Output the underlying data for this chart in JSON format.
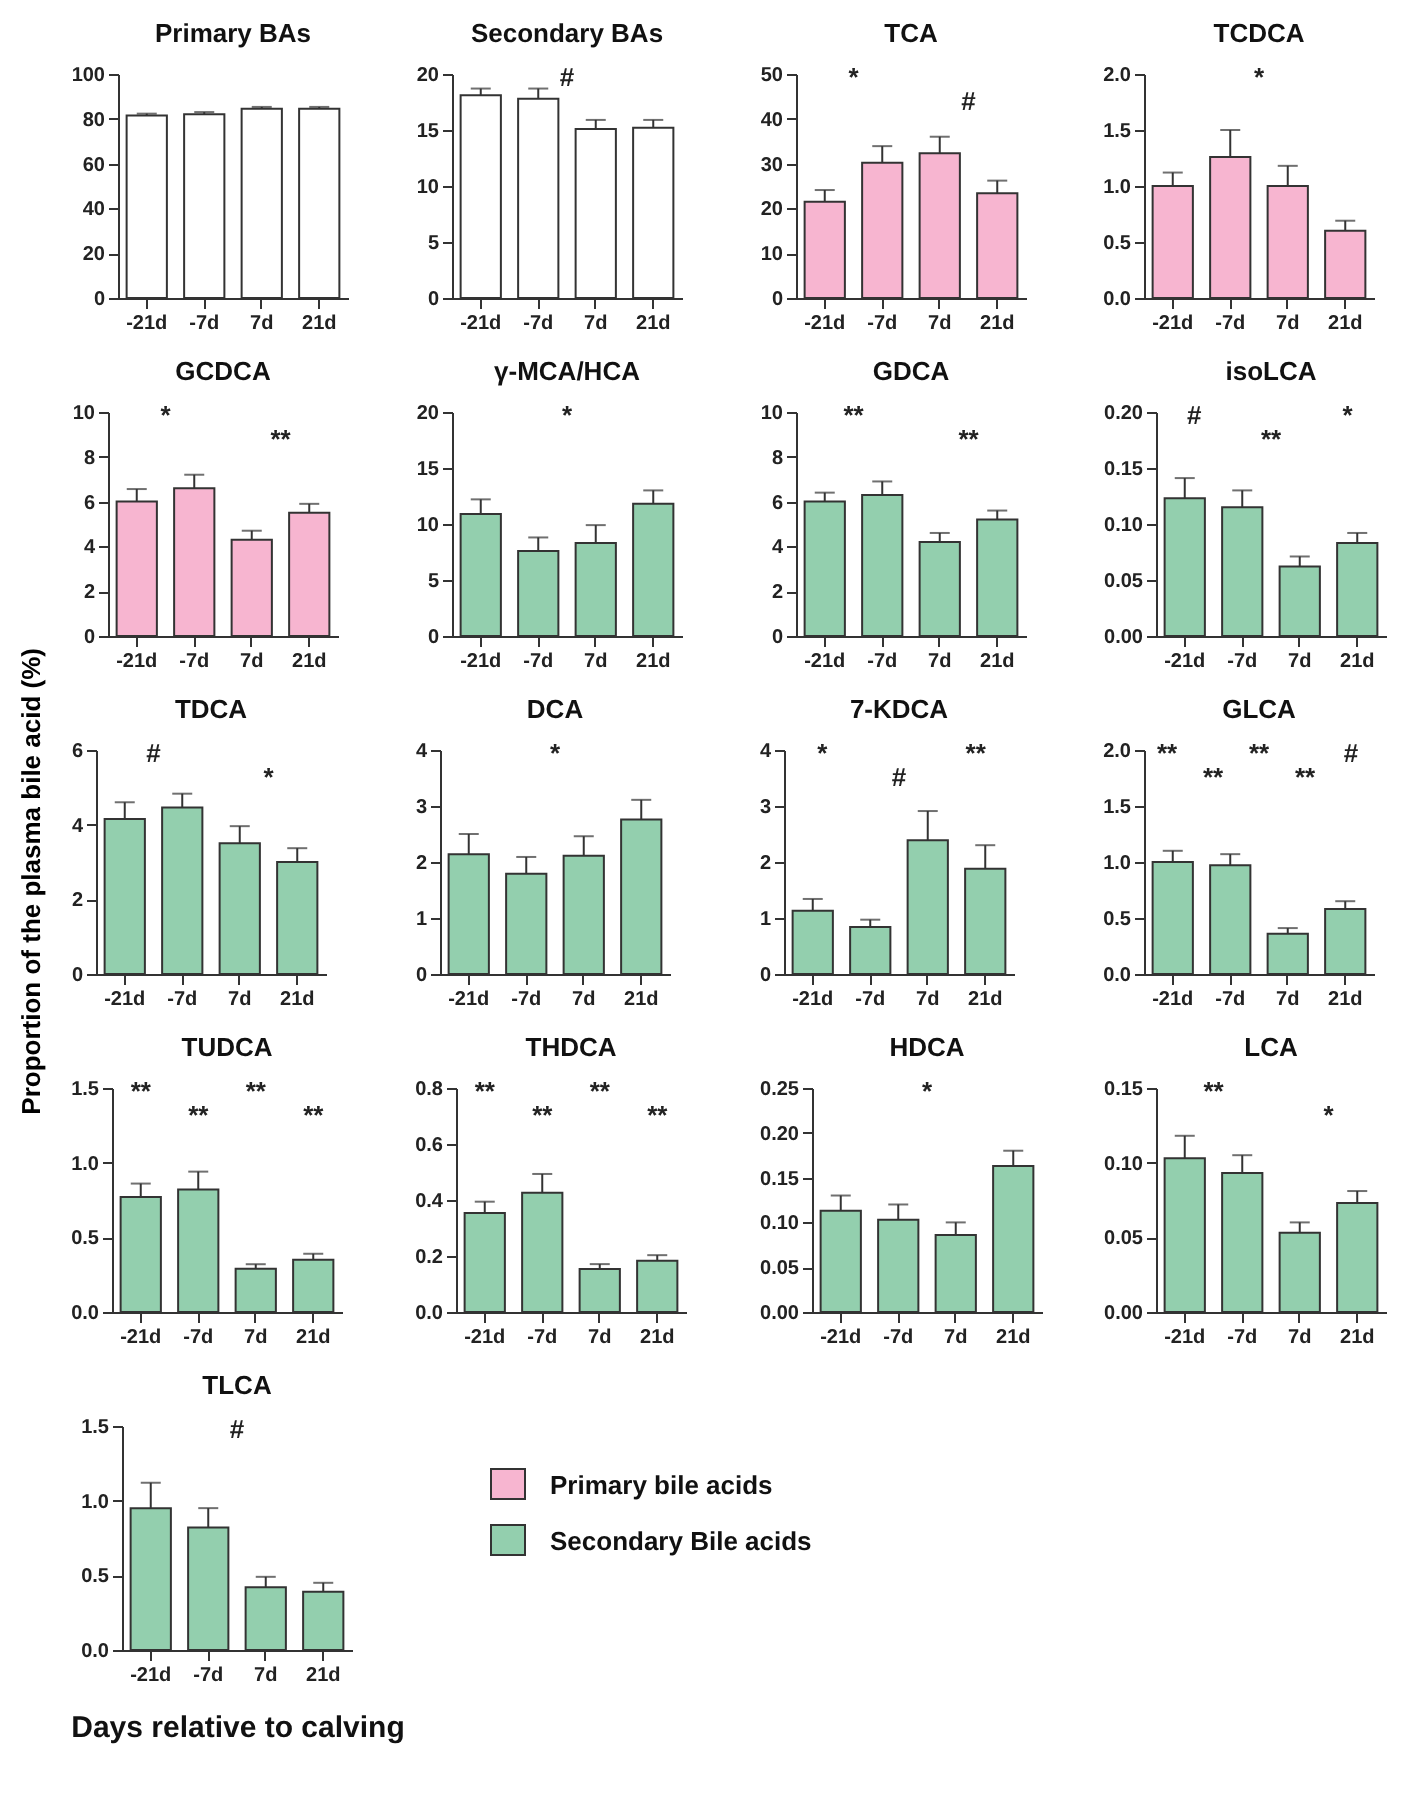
{
  "chart_data": [
    {
      "type": "bar",
      "title": "Primary BAs",
      "categories": [
        "-21d",
        "-7d",
        "7d",
        "21d"
      ],
      "series": [
        {
          "color": "#ffffff",
          "values": [
            81.5,
            82,
            84.5,
            84.5
          ],
          "errors": [
            0.8,
            1,
            0.8,
            0.8
          ]
        }
      ],
      "ylim": [
        0,
        100
      ],
      "yticks": [
        0,
        20,
        40,
        60,
        80,
        100
      ]
    },
    {
      "type": "bar",
      "title": "Secondary BAs",
      "categories": [
        "-21d",
        "-7d",
        "7d",
        "21d"
      ],
      "series": [
        {
          "color": "#ffffff",
          "values": [
            18.1,
            17.8,
            15.1,
            15.2
          ],
          "errors": [
            0.6,
            0.9,
            0.8,
            0.7
          ]
        }
      ],
      "ylim": [
        0,
        20
      ],
      "yticks": [
        0,
        5,
        10,
        15,
        20
      ],
      "annotations": [
        "#"
      ]
    },
    {
      "type": "bar",
      "title": "TCA",
      "categories": [
        "-21d",
        "-7d",
        "7d",
        "21d"
      ],
      "series": [
        {
          "name": "Primary bile acids",
          "color": "#f7b5d0",
          "values": [
            21.5,
            30.2,
            32.3,
            23.4
          ],
          "errors": [
            2.6,
            3.7,
            3.7,
            2.8
          ]
        }
      ],
      "ylim": [
        0,
        50
      ],
      "yticks": [
        0,
        10,
        20,
        30,
        40,
        50
      ],
      "annotations": [
        "*",
        "#"
      ]
    },
    {
      "type": "bar",
      "title": "TCDCA",
      "categories": [
        "-21d",
        "-7d",
        "7d",
        "21d"
      ],
      "series": [
        {
          "color": "#f7b5d0",
          "values": [
            1.0,
            1.26,
            1.0,
            0.6
          ],
          "errors": [
            0.12,
            0.24,
            0.18,
            0.09
          ]
        }
      ],
      "ylim": [
        0,
        2
      ],
      "yticks": [
        {
          "value": 0,
          "label": "0.0"
        },
        0.5,
        {
          "value": 1,
          "label": "1.0"
        },
        1.5,
        {
          "value": 2,
          "label": "2.0"
        }
      ],
      "annotations": [
        "*"
      ]
    },
    {
      "type": "bar",
      "title": "GCDCA",
      "categories": [
        "-21d",
        "-7d",
        "7d",
        "21d"
      ],
      "series": [
        {
          "color": "#f7b5d0",
          "values": [
            6.0,
            6.6,
            4.3,
            5.5
          ],
          "errors": [
            0.56,
            0.6,
            0.4,
            0.4
          ]
        }
      ],
      "ylim": [
        0,
        10
      ],
      "yticks": [
        0,
        2,
        4,
        6,
        8,
        10
      ],
      "annotations": [
        "*",
        "**"
      ]
    },
    {
      "type": "bar",
      "title": "γ-MCA/HCA",
      "categories": [
        "-21d",
        "-7d",
        "7d",
        "21d"
      ],
      "series": [
        {
          "color": "#93cfae",
          "values": [
            10.9,
            7.6,
            8.3,
            11.8
          ],
          "errors": [
            1.3,
            1.2,
            1.6,
            1.2
          ]
        }
      ],
      "ylim": [
        0,
        20
      ],
      "yticks": [
        0,
        5,
        10,
        15,
        20
      ],
      "annotations": [
        "*"
      ]
    },
    {
      "type": "bar",
      "title": "GDCA",
      "categories": [
        "-21d",
        "-7d",
        "7d",
        "21d"
      ],
      "series": [
        {
          "color": "#93cfae",
          "values": [
            6.0,
            6.3,
            4.2,
            5.2
          ],
          "errors": [
            0.4,
            0.6,
            0.4,
            0.4
          ]
        }
      ],
      "ylim": [
        0,
        10
      ],
      "yticks": [
        0,
        2,
        4,
        6,
        8,
        10
      ],
      "annotations": [
        "**",
        "**"
      ]
    },
    {
      "type": "bar",
      "title": "isoLCA",
      "categories": [
        "-21d",
        "-7d",
        "7d",
        "21d"
      ],
      "series": [
        {
          "color": "#93cfae",
          "values": [
            0.123,
            0.115,
            0.062,
            0.083
          ],
          "errors": [
            0.018,
            0.015,
            0.009,
            0.009
          ]
        }
      ],
      "ylim": [
        0,
        0.2
      ],
      "yticks": [
        {
          "value": 0,
          "label": "0.00"
        },
        0.05,
        {
          "value": 0.1,
          "label": "0.10"
        },
        0.15,
        {
          "value": 0.2,
          "label": "0.20"
        }
      ],
      "annotations": [
        "#",
        "**",
        "*"
      ]
    },
    {
      "type": "bar",
      "title": "TDCA",
      "ylabel": "Proportion of  the plasma bile acid (%)",
      "categories": [
        "-21d",
        "-7d",
        "7d",
        "21d"
      ],
      "series": [
        {
          "color": "#93cfae",
          "values": [
            4.15,
            4.46,
            3.5,
            3.0
          ],
          "errors": [
            0.45,
            0.37,
            0.46,
            0.37
          ]
        }
      ],
      "ylim": [
        0,
        6
      ],
      "yticks": [
        0,
        2,
        4,
        6
      ],
      "annotations": [
        "#",
        "*"
      ]
    },
    {
      "type": "bar",
      "title": "DCA",
      "categories": [
        "-21d",
        "-7d",
        "7d",
        "21d"
      ],
      "series": [
        {
          "color": "#93cfae",
          "values": [
            2.14,
            1.79,
            2.11,
            2.76
          ],
          "errors": [
            0.36,
            0.3,
            0.35,
            0.35
          ]
        }
      ],
      "ylim": [
        0,
        4
      ],
      "yticks": [
        0,
        1,
        2,
        3,
        4
      ],
      "annotations": [
        "*"
      ]
    },
    {
      "type": "bar",
      "title": "7-KDCA",
      "categories": [
        "-21d",
        "-7d",
        "7d",
        "21d"
      ],
      "series": [
        {
          "color": "#93cfae",
          "values": [
            1.13,
            0.84,
            2.39,
            1.88
          ],
          "errors": [
            0.21,
            0.13,
            0.52,
            0.42
          ]
        }
      ],
      "ylim": [
        0,
        4
      ],
      "yticks": [
        0,
        1,
        2,
        3,
        4
      ],
      "annotations": [
        "*",
        "#",
        "**"
      ]
    },
    {
      "type": "bar",
      "title": "GLCA",
      "categories": [
        "-21d",
        "-7d",
        "7d",
        "21d"
      ],
      "series": [
        {
          "color": "#93cfae",
          "values": [
            1.0,
            0.97,
            0.36,
            0.58
          ],
          "errors": [
            0.1,
            0.1,
            0.05,
            0.07
          ]
        }
      ],
      "ylim": [
        0,
        2
      ],
      "yticks": [
        {
          "value": 0,
          "label": "0.0"
        },
        0.5,
        {
          "value": 1,
          "label": "1.0"
        },
        1.5,
        {
          "value": 2,
          "label": "2.0"
        }
      ],
      "annotations": [
        "**",
        "**",
        "**",
        "**",
        "#"
      ]
    },
    {
      "type": "bar",
      "title": "TUDCA",
      "categories": [
        "-21d",
        "-7d",
        "7d",
        "21d"
      ],
      "series": [
        {
          "color": "#93cfae",
          "values": [
            0.77,
            0.82,
            0.29,
            0.35
          ],
          "errors": [
            0.09,
            0.12,
            0.03,
            0.04
          ]
        }
      ],
      "ylim": [
        0,
        1.5
      ],
      "yticks": [
        {
          "value": 0,
          "label": "0.0"
        },
        0.5,
        {
          "value": 1,
          "label": "1.0"
        },
        1.5
      ],
      "annotations": [
        "**",
        "**",
        "**",
        "**"
      ]
    },
    {
      "type": "bar",
      "title": "THDCA",
      "categories": [
        "-21d",
        "-7d",
        "7d",
        "21d"
      ],
      "series": [
        {
          "color": "#93cfae",
          "values": [
            0.354,
            0.426,
            0.154,
            0.183
          ],
          "errors": [
            0.04,
            0.067,
            0.017,
            0.02
          ]
        }
      ],
      "ylim": [
        0,
        0.8
      ],
      "yticks": [
        {
          "value": 0,
          "label": "0.0"
        },
        0.2,
        0.4,
        0.6,
        0.8
      ],
      "annotations": [
        "**",
        "**",
        "**",
        "**"
      ]
    },
    {
      "type": "bar",
      "title": "HDCA",
      "categories": [
        "-21d",
        "-7d",
        "7d",
        "21d"
      ],
      "series": [
        {
          "color": "#93cfae",
          "values": [
            0.113,
            0.103,
            0.086,
            0.163
          ],
          "errors": [
            0.017,
            0.017,
            0.014,
            0.017
          ]
        }
      ],
      "ylim": [
        0,
        0.25
      ],
      "yticks": [
        {
          "value": 0,
          "label": "0.00"
        },
        0.05,
        {
          "value": 0.1,
          "label": "0.10"
        },
        0.15,
        {
          "value": 0.2,
          "label": "0.20"
        },
        0.25
      ],
      "annotations": [
        "*"
      ]
    },
    {
      "type": "bar",
      "title": "LCA",
      "categories": [
        "-21d",
        "-7d",
        "7d",
        "21d"
      ],
      "series": [
        {
          "color": "#93cfae",
          "values": [
            0.103,
            0.093,
            0.053,
            0.073
          ],
          "errors": [
            0.015,
            0.012,
            0.007,
            0.008
          ]
        }
      ],
      "ylim": [
        0,
        0.15
      ],
      "yticks": [
        {
          "value": 0,
          "label": "0.00"
        },
        0.05,
        {
          "value": 0.1,
          "label": "0.10"
        },
        0.15
      ],
      "annotations": [
        "**",
        "*"
      ]
    },
    {
      "type": "bar",
      "title": "TLCA",
      "xlabel": "Days relative to calving",
      "legend": "right",
      "categories": [
        "-21d",
        "-7d",
        "7d",
        "21d"
      ],
      "series": [
        {
          "name": "Secondary Bile acids",
          "color": "#93cfae",
          "values": [
            0.95,
            0.82,
            0.42,
            0.39
          ],
          "errors": [
            0.17,
            0.13,
            0.07,
            0.06
          ]
        }
      ],
      "ylim": [
        0,
        1.5
      ],
      "yticks": [
        {
          "value": 0,
          "label": "0.0"
        },
        0.5,
        {
          "value": 1,
          "label": "1.0"
        },
        1.5
      ],
      "annotations": [
        "#"
      ]
    }
  ]
}
